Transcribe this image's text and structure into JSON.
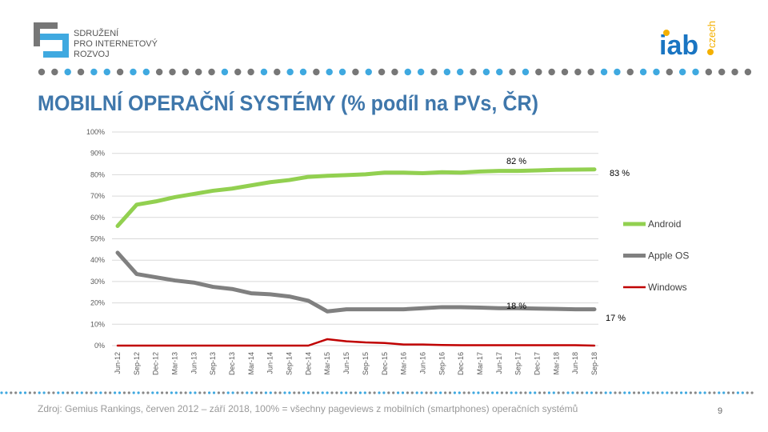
{
  "header": {
    "org_logo_lines": [
      "SDRUŽENÍ",
      "PRO INTERNETOVÝ",
      "ROZVOJ"
    ],
    "iab_logo": "iab.czech"
  },
  "title": "MOBILNÍ OPERAČNÍ SYSTÉMY (% podíl na PVs, ČR)",
  "footer": "Zdroj: Gemius Rankings,  červen 2012 – září 2018, 100% = všechny pageviews z mobilních (smartphones) operačních systémů",
  "page_number": "9",
  "chart_data": {
    "type": "line",
    "title": "",
    "categories": [
      "Jun-12",
      "Sep-12",
      "Dec-12",
      "Mar-13",
      "Jun-13",
      "Sep-13",
      "Dec-13",
      "Mar-14",
      "Jun-14",
      "Sep-14",
      "Dec-14",
      "Mar-15",
      "Jun-15",
      "Sep-15",
      "Dec-15",
      "Mar-16",
      "Jun-16",
      "Sep-16",
      "Dec-16",
      "Mar-17",
      "Jun-17",
      "Sep-17",
      "Dec-17",
      "Mar-18",
      "Jun-18",
      "Sep-18"
    ],
    "yticks": [
      "0%",
      "10%",
      "20%",
      "30%",
      "40%",
      "50%",
      "60%",
      "70%",
      "80%",
      "90%",
      "100%"
    ],
    "ylim": [
      0,
      100
    ],
    "grid": true,
    "legend_position": "right",
    "series": [
      {
        "name": "Android",
        "color": "#92d050",
        "values": [
          56,
          66,
          67.5,
          69.5,
          71,
          72.5,
          73.5,
          75,
          76.5,
          77.5,
          79,
          79.5,
          79.8,
          80.2,
          81,
          81,
          80.7,
          81.2,
          81,
          81.5,
          81.8,
          81.8,
          82,
          82.3,
          82.4,
          82.5
        ]
      },
      {
        "name": "Apple OS",
        "color": "#808080",
        "values": [
          43.5,
          33.5,
          32,
          30.5,
          29.5,
          27.5,
          26.5,
          24.5,
          24,
          23,
          21,
          16,
          17,
          17,
          17,
          17,
          17.5,
          18,
          18,
          17.8,
          17.5,
          17.5,
          17.3,
          17.2,
          17,
          17
        ]
      },
      {
        "name": "Windows",
        "color": "#c00000",
        "values": [
          0,
          0,
          0,
          0,
          0,
          0,
          0,
          0,
          0,
          0,
          0,
          3,
          2,
          1.5,
          1.2,
          0.5,
          0.5,
          0.3,
          0.2,
          0.2,
          0.2,
          0.2,
          0.2,
          0.2,
          0.2,
          0
        ]
      }
    ],
    "annotations": [
      {
        "text": "82 %",
        "series": "Android",
        "category": "Sep-17"
      },
      {
        "text": "83 %",
        "series": "Android",
        "category": "Sep-18"
      },
      {
        "text": "18 %",
        "series": "Apple OS",
        "category": "Sep-17"
      },
      {
        "text": "17 %",
        "series": "Apple OS",
        "category": "Sep-18"
      }
    ]
  }
}
